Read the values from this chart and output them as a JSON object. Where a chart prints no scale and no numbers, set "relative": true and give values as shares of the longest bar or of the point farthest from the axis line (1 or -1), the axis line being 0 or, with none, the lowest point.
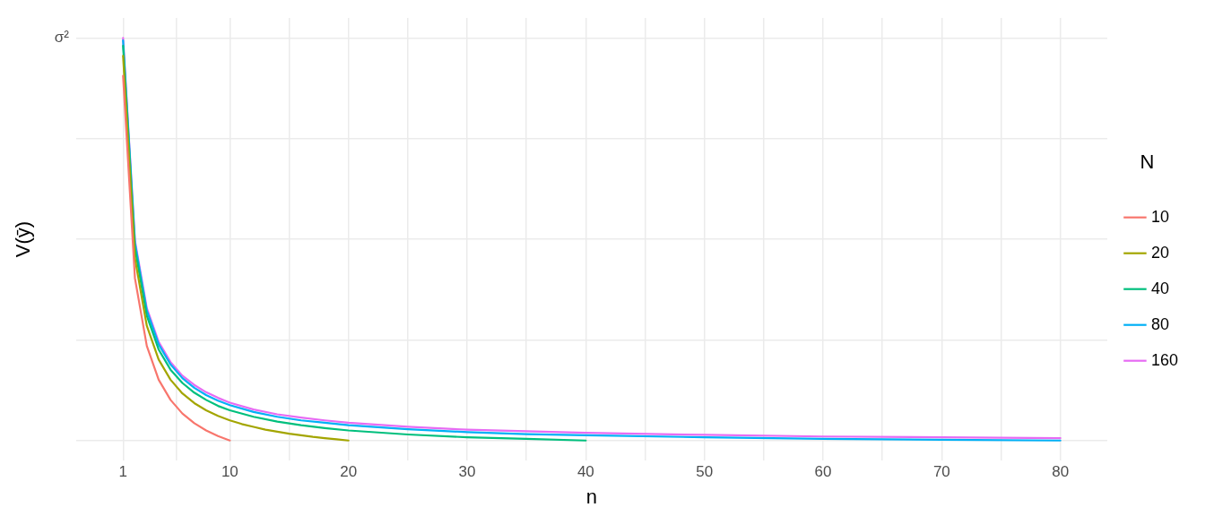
{
  "chart_data": {
    "type": "line",
    "relative": true,
    "xlabel": "n",
    "ylabel": "V(ȳ)",
    "legend_title": "N",
    "legend": "right",
    "grid": true,
    "marker": "none",
    "line_style": "solid",
    "annotations": [
      "σ²"
    ],
    "xlim": [
      -2.95,
      83.95
    ],
    "xticks": [
      1,
      {
        "value": 5.5,
        "label": null
      },
      10,
      {
        "value": 15,
        "label": null
      },
      20,
      {
        "value": 25,
        "label": null
      },
      30,
      {
        "value": 35,
        "label": null
      },
      40,
      {
        "value": 45,
        "label": null
      },
      50,
      {
        "value": 55,
        "label": null
      },
      60,
      {
        "value": 65,
        "label": null
      },
      70,
      {
        "value": 75,
        "label": null
      },
      80
    ],
    "series": [
      {
        "name": "10",
        "color": "#f8766d",
        "x": [
          1,
          2,
          3,
          4,
          5,
          6,
          7,
          8,
          9,
          10
        ],
        "values": [
          0.906,
          0.403,
          0.235,
          0.151,
          0.101,
          0.067,
          0.043,
          0.025,
          0.011,
          0
        ]
      },
      {
        "name": "20",
        "color": "#a3a500",
        "x": [
          1,
          2,
          3,
          4,
          5,
          6,
          7,
          8,
          9,
          10,
          11,
          12,
          13,
          14,
          15,
          16,
          17,
          18,
          19,
          20
        ],
        "values": [
          0.956,
          0.453,
          0.285,
          0.201,
          0.151,
          0.117,
          0.093,
          0.075,
          0.061,
          0.05,
          0.041,
          0.034,
          0.027,
          0.022,
          0.017,
          0.013,
          0.009,
          0.006,
          0.003,
          0
        ]
      },
      {
        "name": "40",
        "color": "#00bf7d",
        "x": [
          1,
          2,
          3,
          4,
          5,
          6,
          7,
          8,
          9,
          10,
          12,
          14,
          16,
          18,
          20,
          25,
          30,
          35,
          40
        ],
        "values": [
          0.981,
          0.478,
          0.31,
          0.226,
          0.176,
          0.143,
          0.119,
          0.101,
          0.086,
          0.075,
          0.059,
          0.047,
          0.038,
          0.031,
          0.025,
          0.015,
          0.008,
          0.004,
          0
        ]
      },
      {
        "name": "80",
        "color": "#00b0f6",
        "x": [
          1,
          2,
          3,
          4,
          5,
          6,
          7,
          8,
          9,
          10,
          12,
          14,
          16,
          18,
          20,
          25,
          30,
          35,
          40,
          50,
          60,
          70,
          80
        ],
        "values": [
          0.994,
          0.491,
          0.323,
          0.239,
          0.189,
          0.155,
          0.131,
          0.113,
          0.099,
          0.088,
          0.071,
          0.059,
          0.05,
          0.044,
          0.038,
          0.028,
          0.021,
          0.016,
          0.013,
          0.008,
          0.004,
          0.002,
          0
        ]
      },
      {
        "name": "160",
        "color": "#e76bf3",
        "x": [
          1,
          2,
          3,
          4,
          5,
          6,
          7,
          8,
          9,
          10,
          12,
          14,
          16,
          18,
          20,
          25,
          30,
          35,
          40,
          50,
          60,
          70,
          80
        ],
        "values": [
          1,
          0.497,
          0.329,
          0.245,
          0.195,
          0.161,
          0.138,
          0.12,
          0.106,
          0.094,
          0.077,
          0.065,
          0.057,
          0.05,
          0.044,
          0.034,
          0.027,
          0.023,
          0.019,
          0.014,
          0.01,
          0.008,
          0.006
        ]
      }
    ]
  }
}
